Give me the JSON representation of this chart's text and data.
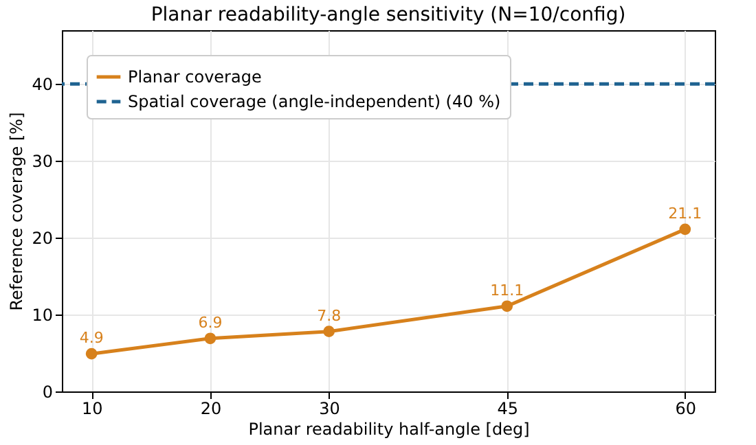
{
  "chart_data": {
    "type": "line",
    "title": "Planar readability-angle sensitivity (N=10/config)",
    "xlabel": "Planar readability half-angle [deg]",
    "ylabel": "Reference coverage [%]",
    "x": [
      10,
      20,
      30,
      45,
      60
    ],
    "series": [
      {
        "name": "Planar coverage",
        "color": "#d7811c",
        "values": [
          4.9,
          6.9,
          7.8,
          11.1,
          21.1
        ]
      }
    ],
    "ref_lines": [
      {
        "axis": "y",
        "value": 40,
        "label": "Spatial coverage (angle-independent) (40 %)",
        "color": "#1f6391",
        "line_style": "dashed"
      }
    ],
    "xlim": [
      7.5,
      62.5
    ],
    "xticks": [
      10,
      20,
      30,
      45,
      60
    ],
    "ylim": [
      0,
      47
    ],
    "yticks": [
      0,
      10,
      20,
      30,
      40
    ],
    "grid": true,
    "legend": "top left",
    "marker": "circle",
    "data_labels": true
  }
}
